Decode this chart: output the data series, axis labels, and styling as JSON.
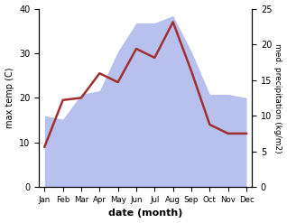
{
  "months": [
    "Jan",
    "Feb",
    "Mar",
    "Apr",
    "May",
    "Jun",
    "Jul",
    "Aug",
    "Sep",
    "Oct",
    "Nov",
    "Dec"
  ],
  "temperature": [
    9,
    19.5,
    20,
    25.5,
    23.5,
    31,
    29,
    37,
    26,
    14,
    12,
    12
  ],
  "precipitation_kg": [
    10,
    9.5,
    13,
    13.5,
    19,
    23,
    23,
    24,
    19,
    13,
    13,
    12.5
  ],
  "temp_color": "#a03030",
  "precip_color_fill": "#b8c0ee",
  "xlabel": "date (month)",
  "ylabel_left": "max temp (C)",
  "ylabel_right": "med. precipitation (kg/m2)",
  "ylim_left": [
    0,
    40
  ],
  "ylim_right": [
    0,
    25
  ],
  "yticks_left": [
    0,
    10,
    20,
    30,
    40
  ],
  "yticks_right": [
    0,
    5,
    10,
    15,
    20,
    25
  ],
  "scale_factor": 1.6,
  "background_color": "#ffffff",
  "line_width": 1.8
}
